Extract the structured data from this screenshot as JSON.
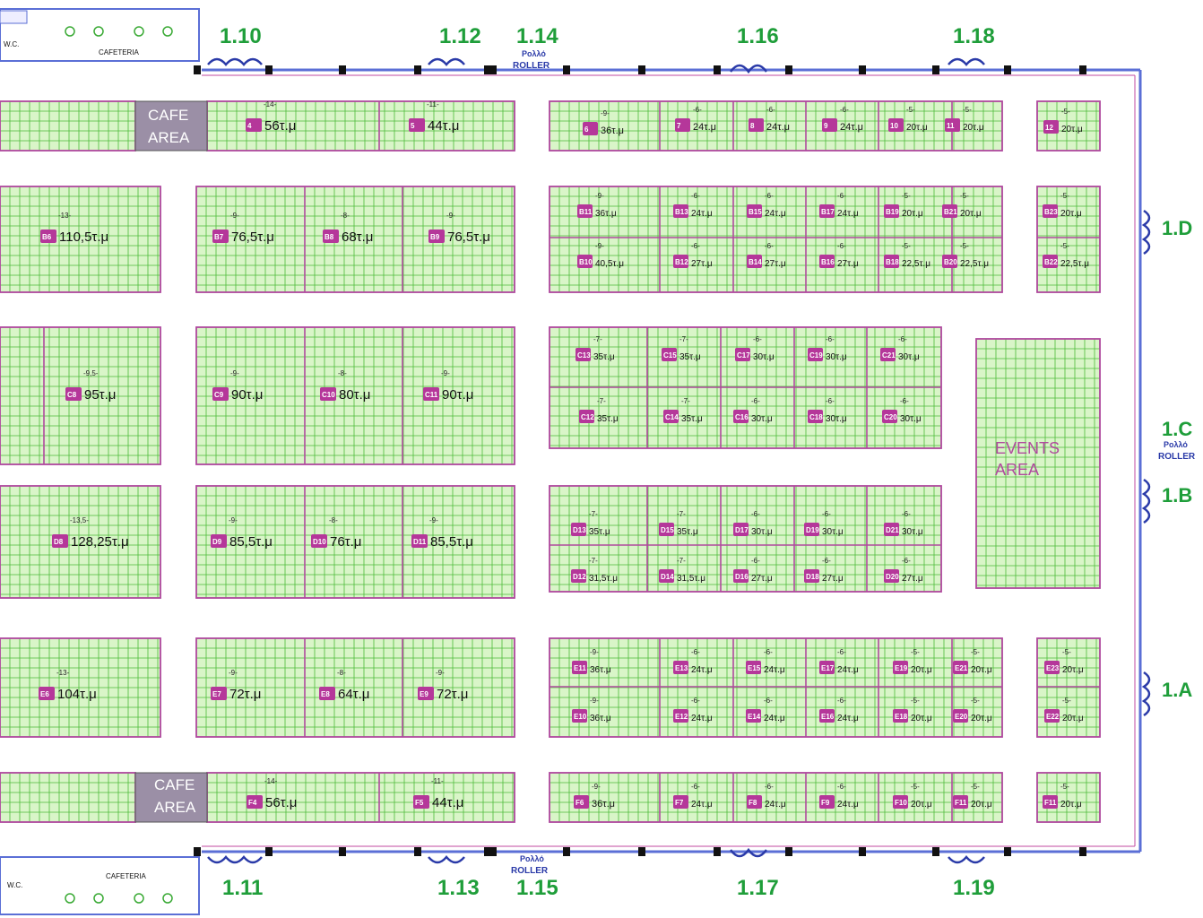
{
  "gates": {
    "g110": "1.10",
    "g112": "1.12",
    "g114": "1.14",
    "g116": "1.16",
    "g118": "1.18",
    "g111": "1.11",
    "g113": "1.13",
    "g115": "1.15",
    "g117": "1.17",
    "g119": "1.19",
    "g1D": "1.D",
    "g1C": "1.C",
    "g1B": "1.B",
    "g1A": "1.A"
  },
  "roller": {
    "greek": "Ρολλό",
    "english": "ROLLER"
  },
  "facilities": {
    "wc": "W.C.",
    "cafeteria": "CAFETERIA",
    "cafe_line1": "CAFE",
    "cafe_line2": "AREA",
    "events_line1": "EVENTS",
    "events_line2": "AREA"
  },
  "colors": {
    "booth_line": "#b04a9e",
    "grid": "#4dbb3a",
    "badge": "#b5379a",
    "gate_text": "#1f9e3a",
    "wall": "#5b6fd6"
  },
  "booths": [
    {
      "id": "4",
      "area": "56τ.μ",
      "top": "-14-"
    },
    {
      "id": "5",
      "area": "44τ.μ",
      "top": "-11-"
    },
    {
      "id": "6",
      "area": "36τ.μ",
      "top": "-9-"
    },
    {
      "id": "7",
      "area": "24τ.μ",
      "top": "-6-"
    },
    {
      "id": "8",
      "area": "24τ.μ",
      "top": "-6-"
    },
    {
      "id": "9",
      "area": "24τ.μ",
      "top": "-6-"
    },
    {
      "id": "10",
      "area": "20τ.μ",
      "top": "-5-"
    },
    {
      "id": "11",
      "area": "20τ.μ",
      "top": "-5-"
    },
    {
      "id": "12",
      "area": "20τ.μ",
      "top": "-5-"
    },
    {
      "id": "B6",
      "area": "110,5τ.μ",
      "top": "-13-"
    },
    {
      "id": "B7",
      "area": "76,5τ.μ",
      "top": "-9-"
    },
    {
      "id": "B8",
      "area": "68τ.μ",
      "top": "-8-"
    },
    {
      "id": "B9",
      "area": "76,5τ.μ",
      "top": "-9-"
    },
    {
      "id": "B11",
      "area": "36τ.μ",
      "top": "-9-"
    },
    {
      "id": "B13",
      "area": "24τ.μ",
      "top": "-6-"
    },
    {
      "id": "B15",
      "area": "24τ.μ",
      "top": "-6-"
    },
    {
      "id": "B17",
      "area": "24τ.μ",
      "top": "-6-"
    },
    {
      "id": "B19",
      "area": "20τ.μ",
      "top": "-5-"
    },
    {
      "id": "B21",
      "area": "20τ.μ",
      "top": "-5-"
    },
    {
      "id": "B23",
      "area": "20τ.μ",
      "top": "-5-"
    },
    {
      "id": "B10",
      "area": "40,5τ.μ",
      "top": "-9-"
    },
    {
      "id": "B12",
      "area": "27τ.μ",
      "top": "-6-"
    },
    {
      "id": "B14",
      "area": "27τ.μ",
      "top": "-6-"
    },
    {
      "id": "B16",
      "area": "27τ.μ",
      "top": "-6-"
    },
    {
      "id": "B18",
      "area": "22,5τ.μ",
      "top": "-5-"
    },
    {
      "id": "B20",
      "area": "22,5τ.μ",
      "top": "-5-"
    },
    {
      "id": "B22",
      "area": "22,5τ.μ",
      "top": "-5-"
    },
    {
      "id": "C8",
      "area": "95τ.μ",
      "top": "-9,5-"
    },
    {
      "id": "C9",
      "area": "90τ.μ",
      "top": "-9-"
    },
    {
      "id": "C10",
      "area": "80τ.μ",
      "top": "-8-"
    },
    {
      "id": "C11",
      "area": "90τ.μ",
      "top": "-9-"
    },
    {
      "id": "C13",
      "area": "35τ.μ",
      "top": "-7-"
    },
    {
      "id": "C15",
      "area": "35τ.μ",
      "top": "-7-"
    },
    {
      "id": "C17",
      "area": "30τ.μ",
      "top": "-6-"
    },
    {
      "id": "C19",
      "area": "30τ.μ",
      "top": "-6-"
    },
    {
      "id": "C21",
      "area": "30τ.μ",
      "top": "-6-"
    },
    {
      "id": "C12",
      "area": "35τ.μ",
      "top": "-7-"
    },
    {
      "id": "C14",
      "area": "35τ.μ",
      "top": "-7-"
    },
    {
      "id": "C16",
      "area": "30τ.μ",
      "top": "-6-"
    },
    {
      "id": "C18",
      "area": "30τ.μ",
      "top": "-6-"
    },
    {
      "id": "C20",
      "area": "30τ.μ",
      "top": "-6-"
    },
    {
      "id": "D8",
      "area": "128,25τ.μ",
      "top": "-13,5-"
    },
    {
      "id": "D9",
      "area": "85,5τ.μ",
      "top": "-9-"
    },
    {
      "id": "D10",
      "area": "76τ.μ",
      "top": "-8-"
    },
    {
      "id": "D11",
      "area": "85,5τ.μ",
      "top": "-9-"
    },
    {
      "id": "D13",
      "area": "35τ.μ",
      "top": "-7-"
    },
    {
      "id": "D15",
      "area": "35τ.μ",
      "top": "-7-"
    },
    {
      "id": "D17",
      "area": "30τ.μ",
      "top": "-6-"
    },
    {
      "id": "D19",
      "area": "30τ.μ",
      "top": "-6-"
    },
    {
      "id": "D21",
      "area": "30τ.μ",
      "top": "-6-"
    },
    {
      "id": "D12",
      "area": "31,5τ.μ",
      "top": "-7-"
    },
    {
      "id": "D14",
      "area": "31,5τ.μ",
      "top": "-7-"
    },
    {
      "id": "D16",
      "area": "27τ.μ",
      "top": "-6-"
    },
    {
      "id": "D18",
      "area": "27τ.μ",
      "top": "-6-"
    },
    {
      "id": "D20",
      "area": "27τ.μ",
      "top": "-6-"
    },
    {
      "id": "E6",
      "area": "104τ.μ",
      "top": "-13-"
    },
    {
      "id": "E7",
      "area": "72τ.μ",
      "top": "-9-"
    },
    {
      "id": "E8",
      "area": "64τ.μ",
      "top": "-8-"
    },
    {
      "id": "E9",
      "area": "72τ.μ",
      "top": "-9-"
    },
    {
      "id": "E11",
      "area": "36τ.μ",
      "top": "-9-"
    },
    {
      "id": "E13",
      "area": "24τ.μ",
      "top": "-6-"
    },
    {
      "id": "E15",
      "area": "24τ.μ",
      "top": "-6-"
    },
    {
      "id": "E17",
      "area": "24τ.μ",
      "top": "-6-"
    },
    {
      "id": "E19",
      "area": "20τ.μ",
      "top": "-5-"
    },
    {
      "id": "E21",
      "area": "20τ.μ",
      "top": "-5-"
    },
    {
      "id": "E23",
      "area": "20τ.μ",
      "top": "-5-"
    },
    {
      "id": "E10",
      "area": "36τ.μ",
      "top": "-9-"
    },
    {
      "id": "E12",
      "area": "24τ.μ",
      "top": "-6-"
    },
    {
      "id": "E14",
      "area": "24τ.μ",
      "top": "-6-"
    },
    {
      "id": "E16",
      "area": "24τ.μ",
      "top": "-6-"
    },
    {
      "id": "E18",
      "area": "20τ.μ",
      "top": "-5-"
    },
    {
      "id": "E20",
      "area": "20τ.μ",
      "top": "-5-"
    },
    {
      "id": "E22",
      "area": "20τ.μ",
      "top": "-5-"
    },
    {
      "id": "F4",
      "area": "56τ.μ",
      "top": "-14-"
    },
    {
      "id": "F5",
      "area": "44τ.μ",
      "top": "-11-"
    },
    {
      "id": "F6",
      "area": "36τ.μ",
      "top": "-9-"
    },
    {
      "id": "F7",
      "area": "24τ.μ",
      "top": "-6-"
    },
    {
      "id": "F8",
      "area": "24τ.μ",
      "top": "-6-"
    },
    {
      "id": "F9",
      "area": "24τ.μ",
      "top": "-6-"
    },
    {
      "id": "F10",
      "area": "20τ.μ",
      "top": "-5-"
    },
    {
      "id": "F11",
      "area": "20τ.μ",
      "top": "-5-"
    },
    {
      "id": "F11b",
      "label": "F11",
      "area": "20τ.μ",
      "top": "-5-"
    }
  ]
}
